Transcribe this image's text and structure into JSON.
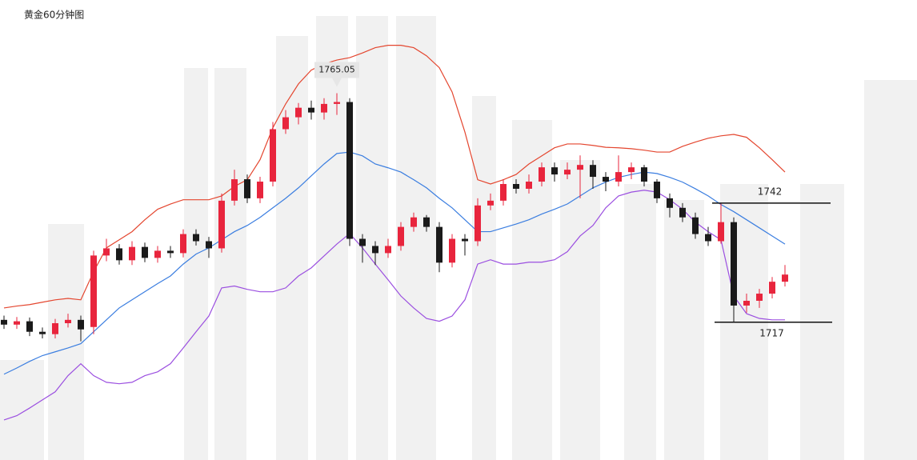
{
  "chart_data": {
    "type": "candlestick",
    "title": "黄金60分钟图",
    "ylim": [
      1688.1,
      1784.6
    ],
    "up_color": "#e8253d",
    "down_color": "#1a1a1a",
    "open": [
      1717.5,
      1716.5,
      1717.2,
      1715.0,
      1714.5,
      1716.8,
      1717.5,
      1716.0,
      1731.0,
      1732.5,
      1730.0,
      1732.8,
      1730.5,
      1732.0,
      1731.5,
      1735.5,
      1734.0,
      1732.5,
      1742.5,
      1747.0,
      1743.0,
      1746.5,
      1757.5,
      1760.0,
      1762.0,
      1761.0,
      1762.8,
      1763.2,
      1734.5,
      1733.0,
      1731.5,
      1733.0,
      1737.0,
      1739.0,
      1737.0,
      1729.5,
      1734.5,
      1734.0,
      1741.5,
      1742.5,
      1746.0,
      1745.0,
      1746.5,
      1749.5,
      1748.0,
      1749.0,
      1750.0,
      1747.5,
      1746.5,
      1748.5,
      1749.5,
      1746.5,
      1743.0,
      1741.0,
      1739.0,
      1735.5,
      1734.0,
      1738.0,
      1720.5,
      1721.5,
      1723.0,
      1725.5
    ],
    "high": [
      1718.4,
      1718.1,
      1718.0,
      1715.9,
      1717.7,
      1718.8,
      1718.4,
      1732.0,
      1734.5,
      1733.4,
      1734.0,
      1733.7,
      1733.0,
      1733.0,
      1736.5,
      1736.5,
      1734.9,
      1744.0,
      1749.0,
      1748.0,
      1747.5,
      1759.0,
      1761.5,
      1763.0,
      1763.5,
      1764.0,
      1765.05,
      1764.0,
      1735.5,
      1734.0,
      1734.5,
      1738.0,
      1740.0,
      1739.5,
      1738.0,
      1735.5,
      1735.5,
      1743.0,
      1744.0,
      1747.0,
      1747.0,
      1748.0,
      1750.5,
      1750.5,
      1750.5,
      1752.0,
      1751.0,
      1748.5,
      1752.0,
      1750.5,
      1750.0,
      1747.0,
      1744.0,
      1742.0,
      1740.0,
      1737.0,
      1742.0,
      1739.0,
      1723.0,
      1724.0,
      1726.5,
      1729.0
    ],
    "low": [
      1715.6,
      1715.6,
      1714.1,
      1713.6,
      1713.6,
      1715.9,
      1713.0,
      1714.5,
      1729.8,
      1729.1,
      1729.0,
      1729.6,
      1729.5,
      1730.5,
      1730.6,
      1733.1,
      1730.5,
      1731.6,
      1741.5,
      1742.0,
      1742.0,
      1745.5,
      1756.5,
      1758.5,
      1759.5,
      1759.5,
      1760.5,
      1733.0,
      1729.5,
      1729.0,
      1730.5,
      1732.0,
      1736.0,
      1736.0,
      1727.5,
      1728.5,
      1731.0,
      1733.0,
      1740.5,
      1741.5,
      1744.0,
      1744.0,
      1745.5,
      1746.5,
      1747.0,
      1743.0,
      1745.0,
      1744.5,
      1745.5,
      1747.0,
      1745.5,
      1742.0,
      1739.0,
      1738.0,
      1734.5,
      1733.0,
      1733.5,
      1717.0,
      1719.0,
      1720.0,
      1722.0,
      1724.5
    ],
    "close": [
      1716.5,
      1717.2,
      1715.0,
      1714.5,
      1716.8,
      1717.5,
      1715.5,
      1731.0,
      1732.5,
      1730.0,
      1732.8,
      1730.5,
      1732.0,
      1731.5,
      1735.5,
      1734.0,
      1732.5,
      1742.5,
      1747.0,
      1743.0,
      1746.5,
      1757.5,
      1760.0,
      1762.0,
      1761.0,
      1762.8,
      1763.2,
      1734.5,
      1733.0,
      1731.5,
      1733.0,
      1737.0,
      1739.0,
      1737.0,
      1729.5,
      1734.5,
      1734.0,
      1741.5,
      1742.5,
      1746.0,
      1745.0,
      1746.5,
      1749.5,
      1748.0,
      1749.0,
      1750.0,
      1747.5,
      1746.5,
      1748.5,
      1749.5,
      1746.5,
      1743.0,
      1741.0,
      1739.0,
      1735.5,
      1734.0,
      1738.0,
      1720.5,
      1721.5,
      1723.0,
      1725.5,
      1727.0
    ],
    "bands": [
      {
        "color": "#e4462f",
        "values": [
          1720.0,
          1720.4,
          1720.7,
          1721.2,
          1721.7,
          1722.0,
          1721.7,
          1727.6,
          1732.6,
          1734.3,
          1736.0,
          1738.5,
          1740.7,
          1741.8,
          1742.7,
          1742.7,
          1742.7,
          1743.5,
          1745.5,
          1746.9,
          1751.1,
          1757.8,
          1762.8,
          1767.0,
          1769.9,
          1771.2,
          1772.0,
          1772.5,
          1773.5,
          1774.6,
          1775.1,
          1775.1,
          1774.6,
          1772.9,
          1770.4,
          1765.3,
          1756.9,
          1746.9,
          1746.0,
          1746.9,
          1748.0,
          1750.2,
          1751.9,
          1753.6,
          1754.4,
          1754.4,
          1754.1,
          1753.7,
          1753.6,
          1753.4,
          1753.1,
          1752.7,
          1752.7,
          1753.9,
          1754.8,
          1755.6,
          1756.1,
          1756.4,
          1755.8,
          1753.6,
          1751.1,
          1748.5
        ]
      },
      {
        "color": "#3b7ee0",
        "values": [
          1706.1,
          1707.4,
          1708.8,
          1710.0,
          1710.8,
          1711.6,
          1712.5,
          1715.0,
          1717.5,
          1720.0,
          1721.7,
          1723.4,
          1725.1,
          1726.7,
          1729.2,
          1731.3,
          1732.6,
          1734.3,
          1736.0,
          1737.3,
          1739.0,
          1741.0,
          1743.0,
          1745.2,
          1747.7,
          1750.2,
          1752.4,
          1752.7,
          1751.9,
          1750.2,
          1749.4,
          1748.5,
          1746.9,
          1745.2,
          1743.0,
          1741.0,
          1738.5,
          1736.0,
          1736.0,
          1736.8,
          1737.6,
          1738.5,
          1739.7,
          1740.7,
          1741.8,
          1743.5,
          1745.2,
          1746.4,
          1747.4,
          1748.0,
          1748.5,
          1748.2,
          1747.4,
          1746.4,
          1745.0,
          1743.5,
          1741.7,
          1740.2,
          1738.5,
          1736.8,
          1735.1,
          1733.4
        ]
      },
      {
        "color": "#9b4fe0",
        "values": [
          1696.5,
          1697.4,
          1699.0,
          1700.7,
          1702.4,
          1705.8,
          1708.3,
          1705.8,
          1704.4,
          1704.1,
          1704.4,
          1705.8,
          1706.6,
          1708.3,
          1711.6,
          1715.0,
          1718.3,
          1724.2,
          1724.6,
          1723.9,
          1723.4,
          1723.4,
          1724.2,
          1726.7,
          1728.4,
          1730.9,
          1733.4,
          1735.6,
          1732.6,
          1729.2,
          1725.9,
          1722.5,
          1720.0,
          1717.8,
          1717.2,
          1718.3,
          1721.7,
          1729.2,
          1730.1,
          1729.2,
          1729.2,
          1729.6,
          1729.6,
          1730.1,
          1731.8,
          1735.1,
          1737.3,
          1741.0,
          1743.5,
          1744.3,
          1744.7,
          1744.3,
          1742.7,
          1740.7,
          1738.0,
          1736.0,
          1734.3,
          1722.5,
          1718.8,
          1717.8,
          1717.5,
          1717.5
        ]
      }
    ],
    "annotations": [
      {
        "value": 1765.05,
        "label": "1765.05"
      },
      {
        "value": 1742,
        "label": "1742"
      },
      {
        "value": 1717,
        "label": "1717"
      }
    ]
  }
}
